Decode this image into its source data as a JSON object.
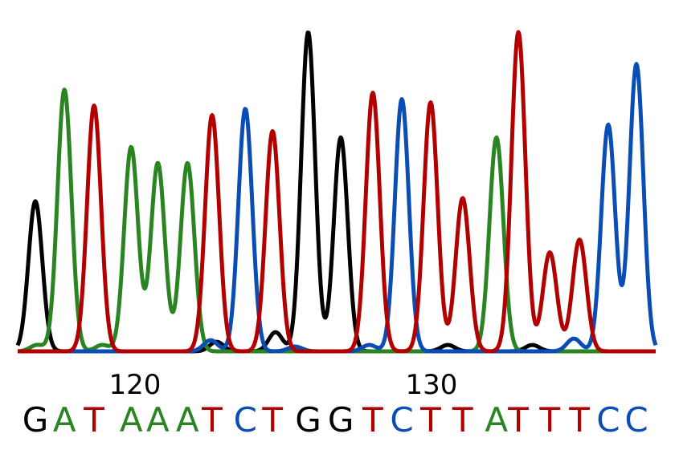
{
  "chart_data": {
    "type": "line",
    "title": "",
    "xlabel": "",
    "ylabel": "",
    "x_ticks": [
      120,
      130
    ],
    "xlim": [
      116.0,
      137.4
    ],
    "ylim": [
      0,
      100
    ],
    "grid": false,
    "colors": {
      "G": "#000000",
      "A": "#2a8422",
      "T": "#b20000",
      "C": "#0a4db4"
    },
    "bases": [
      {
        "position": 117,
        "base": "G"
      },
      {
        "position": 118,
        "base": "A"
      },
      {
        "position": 119,
        "base": "T"
      },
      {
        "position": 120,
        "base": "A"
      },
      {
        "position": 121,
        "base": "A"
      },
      {
        "position": 122,
        "base": "A"
      },
      {
        "position": 123,
        "base": "T"
      },
      {
        "position": 124,
        "base": "C"
      },
      {
        "position": 125,
        "base": "T"
      },
      {
        "position": 126,
        "base": "G"
      },
      {
        "position": 127,
        "base": "G"
      },
      {
        "position": 128,
        "base": "T"
      },
      {
        "position": 129,
        "base": "C"
      },
      {
        "position": 130,
        "base": "T"
      },
      {
        "position": 131,
        "base": "T"
      },
      {
        "position": 132,
        "base": "A"
      },
      {
        "position": 133,
        "base": "T"
      },
      {
        "position": 134,
        "base": "T"
      },
      {
        "position": 135,
        "base": "T"
      },
      {
        "position": 136,
        "base": "C"
      },
      {
        "position": 137,
        "base": "C"
      }
    ],
    "series": [
      {
        "channel": "G",
        "peaks": [
          [
            116.64,
            47
          ],
          [
            125.84,
            100
          ],
          [
            126.94,
            67
          ],
          [
            122.75,
            3
          ],
          [
            124.74,
            6
          ],
          [
            130.55,
            2
          ],
          [
            133.4,
            2
          ]
        ]
      },
      {
        "channel": "A",
        "peaks": [
          [
            117.62,
            82
          ],
          [
            119.87,
            64
          ],
          [
            120.77,
            59
          ],
          [
            121.77,
            59
          ],
          [
            132.19,
            67
          ],
          [
            116.7,
            2
          ],
          [
            118.9,
            2
          ]
        ]
      },
      {
        "channel": "T",
        "peaks": [
          [
            118.62,
            77
          ],
          [
            122.6,
            74
          ],
          [
            124.64,
            69
          ],
          [
            128.02,
            81
          ],
          [
            129.0,
            0
          ],
          [
            129.97,
            78
          ],
          [
            131.05,
            48
          ],
          [
            132.93,
            100
          ],
          [
            133.99,
            31
          ],
          [
            134.99,
            35
          ]
        ]
      },
      {
        "channel": "C",
        "peaks": [
          [
            123.72,
            76
          ],
          [
            129.0,
            79
          ],
          [
            135.96,
            71
          ],
          [
            136.91,
            90
          ],
          [
            122.55,
            3.5
          ],
          [
            127.9,
            2
          ],
          [
            134.8,
            4
          ],
          [
            125.4,
            1.5
          ]
        ]
      }
    ]
  }
}
